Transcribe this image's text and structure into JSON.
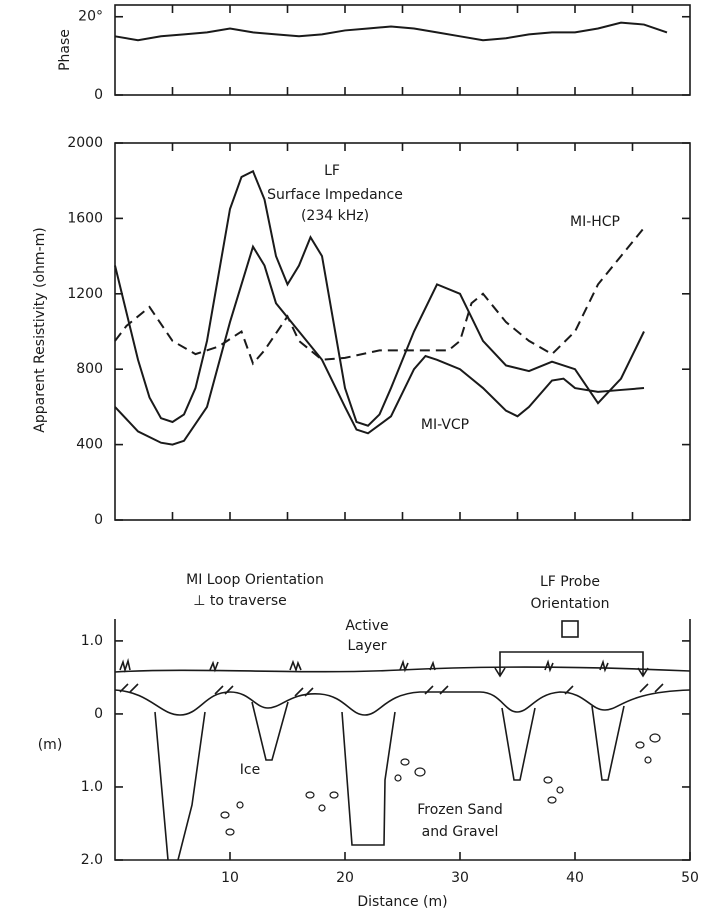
{
  "chart_data": [
    {
      "type": "line",
      "ylabel": "Phase",
      "xlim": [
        0,
        50
      ],
      "ylim": [
        0,
        23
      ],
      "yticks": [
        {
          "value": 20,
          "label": "20°"
        },
        0
      ],
      "xticks": [
        5,
        10,
        15,
        20,
        25,
        30,
        35,
        40,
        45
      ],
      "xtick_labels": false,
      "series": [
        {
          "color": "#1a1a1a",
          "x": [
            0,
            2,
            4,
            6,
            8,
            10,
            12,
            14,
            16,
            18,
            20,
            22,
            24,
            26,
            28,
            30,
            32,
            34,
            36,
            38,
            40,
            42,
            44,
            46,
            48
          ],
          "values": [
            15,
            14,
            15,
            15.5,
            16,
            17,
            16,
            15.5,
            15,
            15.5,
            16.5,
            17,
            17.5,
            17,
            16,
            15,
            14,
            14.5,
            15.5,
            16,
            16,
            17,
            18.5,
            18,
            16
          ]
        }
      ]
    },
    {
      "type": "line",
      "ylabel": "Apparent Resistivity (ohm-m)",
      "xlim": [
        0,
        50
      ],
      "ylim": [
        0,
        2000
      ],
      "yticks": [
        0,
        400,
        800,
        1200,
        1600,
        2000
      ],
      "xticks": [
        5,
        10,
        15,
        20,
        25,
        30,
        35,
        40,
        45
      ],
      "xtick_labels": false,
      "annotations": [
        "Surface Impedance",
        "(234 kHz)"
      ],
      "series": [
        {
          "name": "LF",
          "color": "#1a1a1a",
          "dash": false,
          "x": [
            0,
            1,
            2,
            3,
            4,
            5,
            6,
            7,
            8,
            9,
            10,
            11,
            12,
            13,
            14,
            15,
            16,
            17,
            18,
            19,
            20,
            21,
            22,
            23,
            24,
            26,
            28,
            30,
            32,
            34,
            36,
            38,
            40,
            42,
            44,
            46
          ],
          "values": [
            1350,
            1100,
            850,
            650,
            540,
            520,
            560,
            700,
            950,
            1300,
            1650,
            1820,
            1850,
            1700,
            1400,
            1250,
            1350,
            1500,
            1400,
            1050,
            700,
            520,
            500,
            560,
            700,
            1000,
            1250,
            1200,
            950,
            820,
            790,
            840,
            800,
            620,
            750,
            1000
          ]
        },
        {
          "name": "MI-VCP",
          "color": "#1a1a1a",
          "dash": false,
          "x": [
            0,
            2,
            4,
            5,
            6,
            8,
            10,
            12,
            13,
            14,
            16,
            18,
            20,
            21,
            22,
            24,
            26,
            27,
            28,
            30,
            32,
            34,
            35,
            36,
            38,
            39,
            40,
            42,
            44,
            46
          ],
          "values": [
            600,
            470,
            410,
            400,
            420,
            600,
            1050,
            1450,
            1350,
            1150,
            1000,
            850,
            600,
            480,
            460,
            550,
            800,
            870,
            850,
            800,
            700,
            580,
            550,
            600,
            740,
            750,
            700,
            680,
            690,
            700
          ]
        },
        {
          "name": "MI-HCP",
          "color": "#1a1a1a",
          "dash": true,
          "x": [
            0,
            1,
            3,
            5,
            7,
            9,
            11,
            12,
            13,
            15,
            16,
            18,
            20,
            23,
            26,
            29,
            30,
            31,
            32,
            34,
            36,
            38,
            40,
            42,
            44,
            46
          ],
          "values": [
            950,
            1030,
            1130,
            950,
            880,
            920,
            1000,
            830,
            900,
            1080,
            950,
            850,
            860,
            900,
            900,
            900,
            950,
            1150,
            1200,
            1050,
            950,
            880,
            1000,
            1250,
            1400,
            1550
          ]
        }
      ]
    },
    {
      "type": "cross-section",
      "ylabel": "(m)",
      "xlabel": "Distance (m)",
      "xlim": [
        0,
        50
      ],
      "ylim": [
        -2,
        1.3
      ],
      "yticks": [
        {
          "value": 1,
          "label": "1.0"
        },
        0,
        {
          "value": -1,
          "label": "1.0"
        },
        {
          "value": -2,
          "label": "2.0"
        }
      ],
      "xticks": [
        10,
        20,
        30,
        40,
        50
      ],
      "xtick_labels": true,
      "annotations": [
        "MI Loop Orientation",
        "⊥ to traverse",
        "LF Probe",
        "Orientation",
        "Active",
        "Layer",
        "Ice",
        "Frozen Sand",
        "and Gravel"
      ]
    }
  ]
}
